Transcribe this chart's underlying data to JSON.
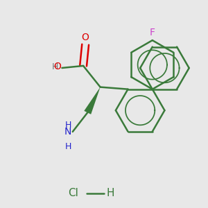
{
  "background_color": "#e8e8e8",
  "bond_color": "#3a7a3a",
  "atom_colors": {
    "F": "#cc44cc",
    "O": "#dd0000",
    "N": "#2222cc",
    "Cl": "#3a7a3a",
    "H": "#777777"
  },
  "bond_width": 1.8,
  "figsize": [
    3.0,
    3.0
  ],
  "dpi": 100
}
